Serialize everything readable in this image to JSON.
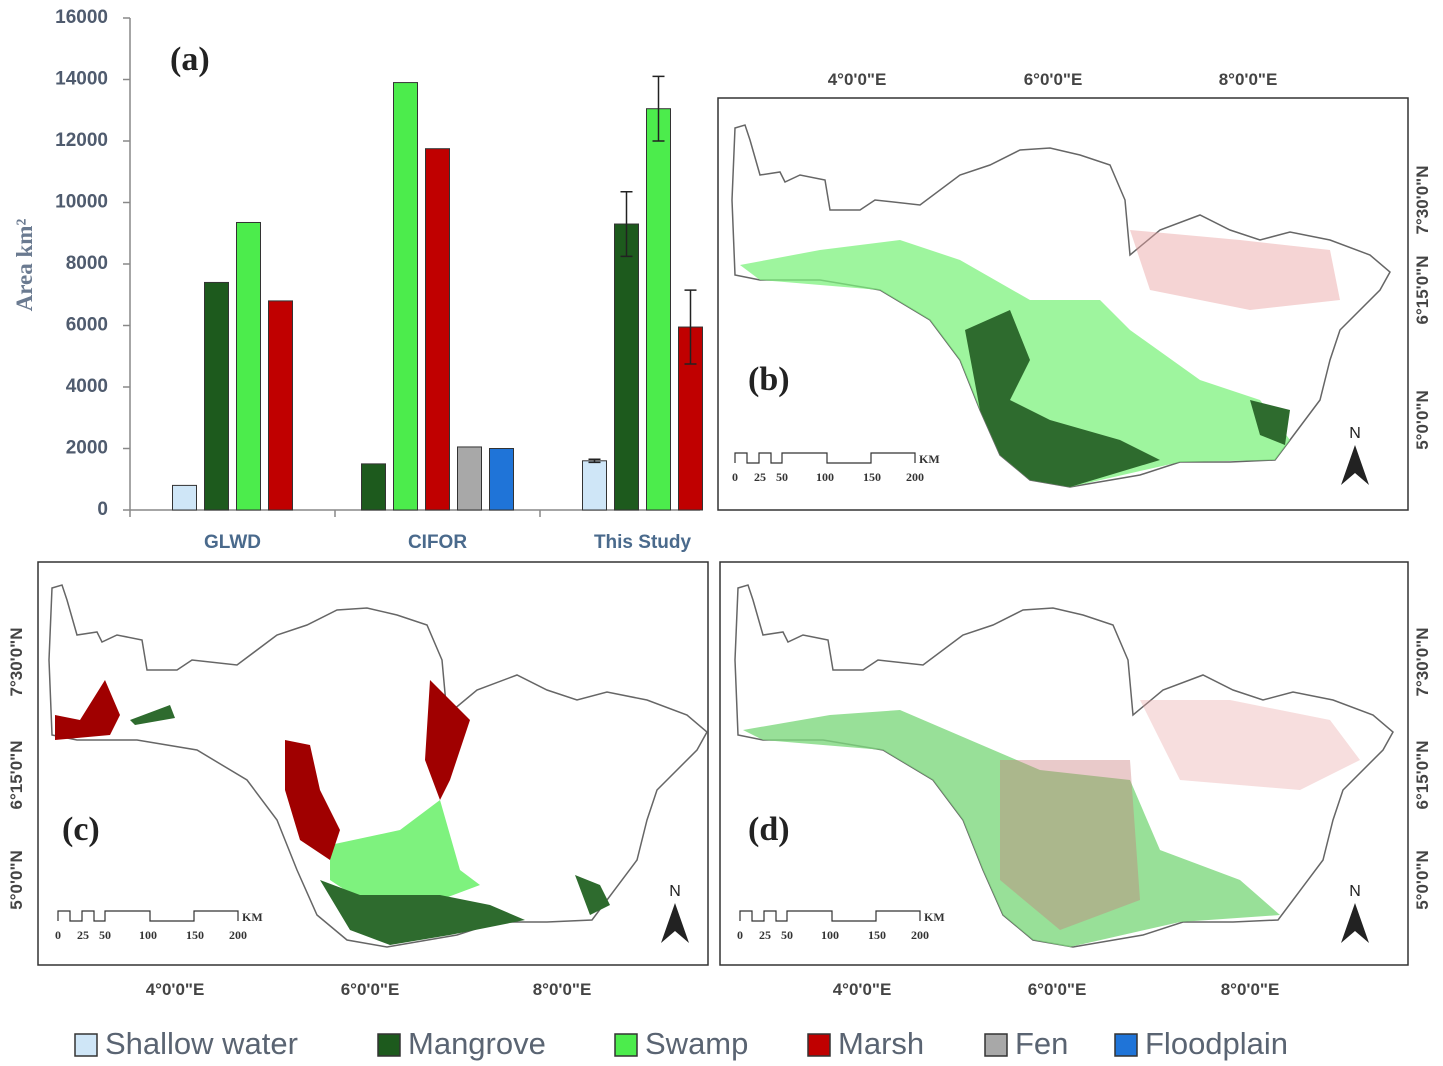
{
  "chart_data": {
    "type": "bar",
    "title": "(a)",
    "y_label": "Area km²",
    "categories": [
      "GLWD",
      "CIFOR",
      "This Study"
    ],
    "series": [
      {
        "name": "Shallow water",
        "color": "#cfe6f7",
        "values": [
          800,
          null,
          1600
        ],
        "errors": [
          null,
          null,
          50
        ]
      },
      {
        "name": "Mangrove",
        "color": "#1d5a1d",
        "values": [
          7400,
          1500,
          9300
        ],
        "errors": [
          null,
          null,
          1050
        ]
      },
      {
        "name": "Swamp",
        "color": "#4cec4c",
        "values": [
          9350,
          13900,
          13050
        ],
        "errors": [
          null,
          null,
          1050
        ]
      },
      {
        "name": "Marsh",
        "color": "#c00000",
        "values": [
          6800,
          11750,
          5950
        ],
        "errors": [
          null,
          null,
          1200
        ]
      },
      {
        "name": "Fen",
        "color": "#a8a8a8",
        "values": [
          null,
          2050,
          null
        ],
        "errors": [
          null,
          null,
          null
        ]
      },
      {
        "name": "Floodplain",
        "color": "#1f74d8",
        "values": [
          null,
          2000,
          null
        ],
        "errors": [
          null,
          null,
          null
        ]
      }
    ],
    "ylim": [
      0,
      16000
    ],
    "yticks": [
      0,
      2000,
      4000,
      6000,
      8000,
      10000,
      12000,
      14000,
      16000
    ]
  },
  "maps": {
    "panels": [
      {
        "label": "(b)"
      },
      {
        "label": "(c)"
      },
      {
        "label": "(d)"
      }
    ],
    "lon_labels": [
      "4°0'0\"E",
      "6°0'0\"E",
      "8°0'0\"E"
    ],
    "lat_labels": [
      "7°30'0\"N",
      "6°15'0\"N",
      "5°0'0\"N"
    ],
    "scale_labels": [
      "0",
      "25",
      "50",
      "100",
      "150",
      "200"
    ],
    "scale_unit": "KM",
    "north": "N"
  }
}
